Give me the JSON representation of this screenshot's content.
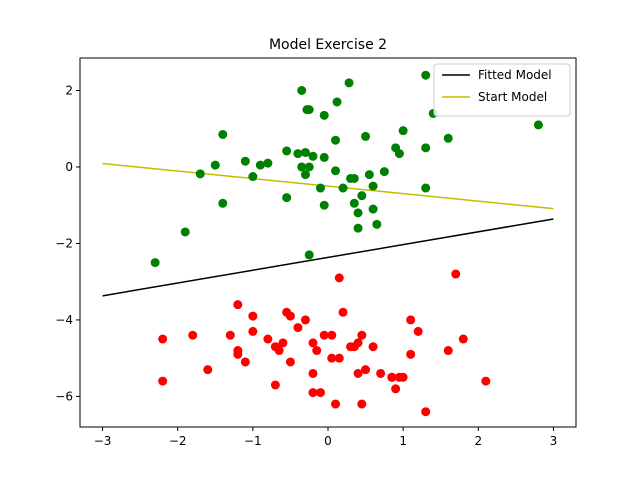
{
  "chart_data": {
    "type": "scatter",
    "title": "Model Exercise 2",
    "xlabel": "",
    "ylabel": "",
    "xlim": [
      -3.3,
      3.3
    ],
    "ylim": [
      -6.8,
      2.85
    ],
    "xticks": [
      -3,
      -2,
      -1,
      0,
      1,
      2,
      3
    ],
    "xtick_labels": [
      "−3",
      "−2",
      "−1",
      "0",
      "1",
      "2",
      "3"
    ],
    "yticks": [
      -6,
      -4,
      -2,
      0,
      2
    ],
    "ytick_labels": [
      "−6",
      "−4",
      "−2",
      "0",
      "2"
    ],
    "grid": false,
    "legend_position": "top-right",
    "series": [
      {
        "kind": "line",
        "name": "Fitted Model",
        "color": "#000000",
        "x": [
          -3,
          3
        ],
        "y": [
          -3.37,
          -1.36
        ]
      },
      {
        "kind": "line",
        "name": "Start Model",
        "color": "#bfbf00",
        "x": [
          -3,
          3
        ],
        "y": [
          0.09,
          -1.09
        ]
      },
      {
        "kind": "scatter",
        "color": "#008000",
        "x": [
          -0.35,
          -0.28,
          0.28,
          -0.05,
          0.12,
          -0.25,
          1.3,
          1.4,
          2.8,
          -1.4,
          1.0,
          0.5,
          1.6,
          0.1,
          0.9,
          -1.1,
          -0.55,
          -0.4,
          -0.3,
          -0.2,
          -0.05,
          -1.5,
          -0.9,
          -0.8,
          1.3,
          0.95,
          -1.7,
          -0.35,
          -0.25,
          -1.0,
          0.1,
          0.75,
          0.55,
          0.35,
          0.6,
          -0.3,
          -0.1,
          0.2,
          0.45,
          -0.55,
          0.35,
          0.65,
          -1.4,
          -0.05,
          0.4,
          0.6,
          0.4,
          -1.9,
          -0.25,
          -2.3,
          1.3,
          0.3
        ],
        "y": [
          2.0,
          1.5,
          2.2,
          1.35,
          1.7,
          1.5,
          2.4,
          1.4,
          1.1,
          0.85,
          0.95,
          0.8,
          0.75,
          0.7,
          0.5,
          0.15,
          0.42,
          0.35,
          0.38,
          0.28,
          0.25,
          0.05,
          0.05,
          0.1,
          0.5,
          0.35,
          -0.18,
          0.0,
          0.0,
          -0.25,
          -0.1,
          -0.12,
          -0.2,
          -0.3,
          -0.5,
          -0.2,
          -0.55,
          -0.55,
          -0.75,
          -0.8,
          -0.95,
          -1.5,
          -0.95,
          -1.0,
          -1.2,
          -1.1,
          -1.6,
          -1.7,
          -2.3,
          -2.5,
          -0.55,
          -0.3
        ]
      },
      {
        "kind": "scatter",
        "color": "#ff0000",
        "x": [
          0.15,
          1.7,
          -1.2,
          0.2,
          -0.55,
          -0.5,
          -1.0,
          -0.3,
          0.05,
          0.45,
          1.1,
          -1.8,
          -1.3,
          -0.2,
          -0.6,
          -2.2,
          -1.0,
          -0.4,
          -0.8,
          0.35,
          0.3,
          1.2,
          -0.15,
          0.05,
          0.15,
          -0.7,
          -1.2,
          -0.65,
          1.6,
          0.9,
          1.8,
          0.5,
          0.7,
          0.85,
          0.95,
          -1.6,
          -1.1,
          -0.5,
          -0.2,
          0.6,
          0.4,
          -0.7,
          0.85,
          -0.2,
          -0.1,
          0.1,
          0.45,
          -2.2,
          2.1,
          1.3,
          -1.2,
          -0.05,
          0.4,
          1.0,
          1.1
        ],
        "y": [
          -2.9,
          -2.8,
          -3.6,
          -3.8,
          -3.8,
          -3.9,
          -3.9,
          -4.0,
          -4.4,
          -4.4,
          -4.0,
          -4.4,
          -4.4,
          -4.6,
          -4.6,
          -4.5,
          -4.3,
          -4.2,
          -4.5,
          -4.7,
          -4.7,
          -4.3,
          -4.8,
          -5.0,
          -5.0,
          -4.7,
          -4.9,
          -4.8,
          -4.8,
          -5.8,
          -4.5,
          -5.3,
          -5.4,
          -5.5,
          -5.5,
          -5.3,
          -5.1,
          -5.1,
          -5.4,
          -4.7,
          -4.6,
          -5.7,
          -5.5,
          -5.9,
          -5.9,
          -6.2,
          -6.2,
          -5.6,
          -5.6,
          -6.4,
          -4.8,
          -4.4,
          -5.4,
          -5.5,
          -4.9
        ]
      }
    ]
  }
}
